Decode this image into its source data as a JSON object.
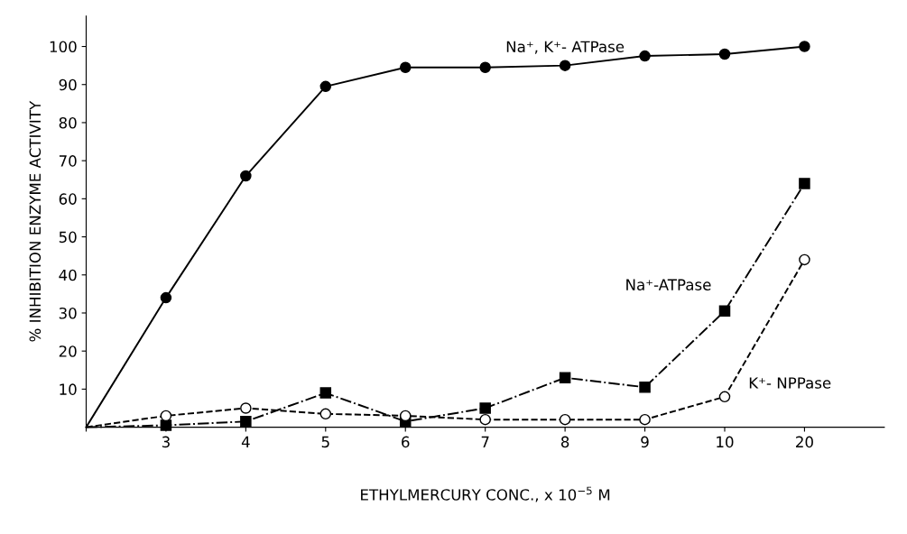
{
  "chart_data": {
    "type": "line",
    "xlabel": "ETHYLMERCURY CONC., x 10$^{−5}$ M",
    "ylabel": "% INHIBITION ENZYME ACTIVITY",
    "categories": [
      null,
      "3",
      "4",
      "5",
      "6",
      "7",
      "8",
      "9",
      "10",
      "20"
    ],
    "ylim": [
      0,
      108
    ],
    "yticks": [
      10,
      20,
      30,
      40,
      50,
      60,
      70,
      80,
      90,
      100
    ],
    "grid": false,
    "legend": false,
    "series": [
      {
        "name": "Na⁺, K⁺- ATPase",
        "color": "#000000",
        "marker": "circle",
        "line_style": "solid",
        "values": [
          0,
          34,
          66,
          89.5,
          94.5,
          94.5,
          95,
          97.5,
          98,
          100
        ]
      },
      {
        "name": "Na⁺-ATPase",
        "color": "#000000",
        "marker": "square",
        "line_style": "dashdot",
        "values": [
          0,
          0.5,
          1.5,
          9,
          1.5,
          5,
          13,
          10.5,
          30.5,
          64
        ]
      },
      {
        "name": "K⁺- NPPase",
        "color": "#000000",
        "marker": "circle",
        "line_style": "dashed",
        "values": [
          0,
          3,
          5,
          3.5,
          3,
          2,
          2,
          2,
          8,
          44
        ]
      }
    ]
  }
}
